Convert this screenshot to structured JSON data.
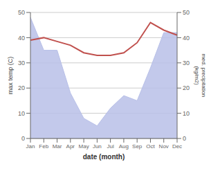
{
  "chart_data": {
    "type": "line",
    "categories": [
      "Jan",
      "Feb",
      "Mar",
      "Apr",
      "May",
      "Jun",
      "Jul",
      "Aug",
      "Sep",
      "Oct",
      "Nov",
      "Dec"
    ],
    "series": [
      {
        "type": "area",
        "axis": "y2",
        "color": "#b8c0e8",
        "values": [
          48,
          35,
          35,
          18,
          8,
          5,
          12,
          17,
          15,
          28,
          42,
          42
        ]
      },
      {
        "type": "line",
        "color": "#c0504d",
        "values": [
          39,
          40,
          38.5,
          37,
          34,
          33,
          33,
          34,
          38,
          46,
          43,
          41
        ]
      }
    ],
    "xlabel": "date (month)",
    "ylabel": "max temp (C)",
    "y2label": "med. precipitation\n(kg/m2)",
    "ylim": [
      0,
      50
    ],
    "yticks": [
      0,
      10,
      20,
      30,
      40,
      50
    ],
    "y2lim": [
      0,
      50
    ],
    "y2ticks": [
      0,
      10,
      20,
      30,
      40,
      50
    ],
    "grid": true
  }
}
